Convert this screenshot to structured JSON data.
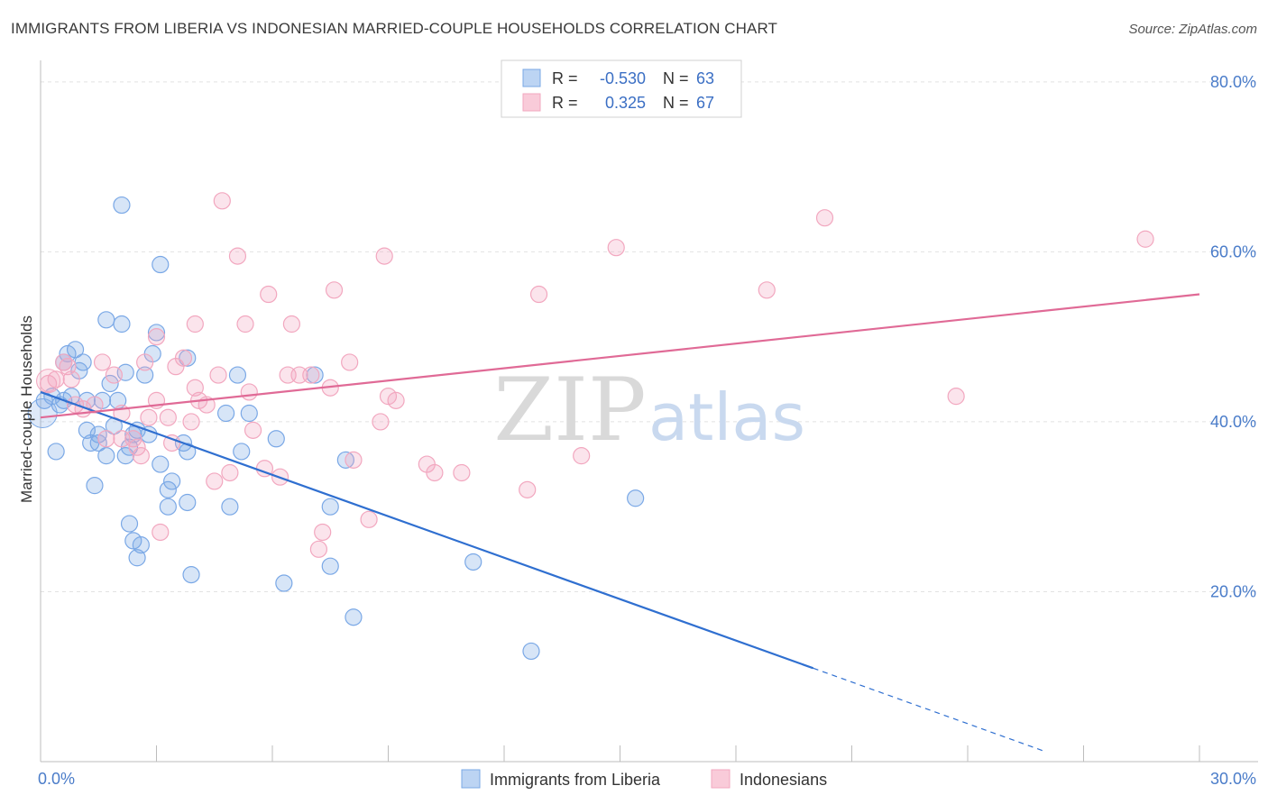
{
  "title": "IMMIGRANTS FROM LIBERIA VS INDONESIAN MARRIED-COUPLE HOUSEHOLDS CORRELATION CHART",
  "source": "Source: ZipAtlas.com",
  "watermark": {
    "zip": "ZIP",
    "atlas": "atlas"
  },
  "chart_data": {
    "type": "scatter",
    "ylabel": "Married-couple Households",
    "xlim": [
      0,
      30
    ],
    "ylim": [
      0,
      82
    ],
    "x_tick_labels": [
      {
        "value": 0,
        "label": "0.0%"
      },
      {
        "value": 30,
        "label": "30.0%"
      }
    ],
    "y_tick_labels": [
      {
        "value": 20,
        "label": "20.0%"
      },
      {
        "value": 40,
        "label": "40.0%"
      },
      {
        "value": 60,
        "label": "60.0%"
      },
      {
        "value": 80,
        "label": "80.0%"
      }
    ],
    "grid": true,
    "legend_placement": "top-center",
    "series": [
      {
        "name": "Immigrants from Liberia",
        "color": "#7aa8e6",
        "line_color": "#2f6fd0",
        "R": "-0.530",
        "N": "63",
        "trend": {
          "x0": 0,
          "y0": 43.5,
          "x1": 20,
          "y1": 11,
          "dash_to_x": 26,
          "dash_to_y": 1.2
        },
        "points": [
          [
            0.1,
            42.5
          ],
          [
            0.3,
            43
          ],
          [
            0.5,
            42
          ],
          [
            0.6,
            47
          ],
          [
            0.7,
            48
          ],
          [
            0.8,
            43
          ],
          [
            0.9,
            48.5
          ],
          [
            1,
            46
          ],
          [
            1.2,
            42.5
          ],
          [
            0.4,
            36.5
          ],
          [
            1.2,
            39
          ],
          [
            1.3,
            37.5
          ],
          [
            1.4,
            32.5
          ],
          [
            1.5,
            37.5
          ],
          [
            1.6,
            42.5
          ],
          [
            1.7,
            52
          ],
          [
            1.7,
            36
          ],
          [
            1.8,
            44.5
          ],
          [
            1.9,
            39.5
          ],
          [
            2,
            42.5
          ],
          [
            2.1,
            51.5
          ],
          [
            2.2,
            36
          ],
          [
            2.3,
            37
          ],
          [
            2.3,
            28
          ],
          [
            2.4,
            26
          ],
          [
            2.5,
            24
          ],
          [
            2.6,
            25.5
          ],
          [
            2.7,
            45.5
          ],
          [
            2.5,
            39
          ],
          [
            2.1,
            65.5
          ],
          [
            2.8,
            38.5
          ],
          [
            2.9,
            48
          ],
          [
            3,
            50.5
          ],
          [
            3.1,
            58.5
          ],
          [
            3.1,
            35
          ],
          [
            3.3,
            30
          ],
          [
            3.4,
            33
          ],
          [
            3.3,
            32
          ],
          [
            3.8,
            30.5
          ],
          [
            3.9,
            22
          ],
          [
            3.7,
            37.5
          ],
          [
            3.8,
            36.5
          ],
          [
            3.8,
            47.5
          ],
          [
            4.8,
            41
          ],
          [
            4.9,
            30
          ],
          [
            5.1,
            45.5
          ],
          [
            5.2,
            36.5
          ],
          [
            5.4,
            41
          ],
          [
            6.1,
            38
          ],
          [
            6.3,
            21
          ],
          [
            7.1,
            45.5
          ],
          [
            7.5,
            30
          ],
          [
            7.5,
            23
          ],
          [
            7.9,
            35.5
          ],
          [
            8.1,
            17
          ],
          [
            11.2,
            23.5
          ],
          [
            12.7,
            13
          ],
          [
            15.4,
            31
          ],
          [
            1.1,
            47
          ],
          [
            2.2,
            45.8
          ],
          [
            0.6,
            42.5
          ],
          [
            1.5,
            38.5
          ],
          [
            2.4,
            38.5
          ]
        ]
      },
      {
        "name": "Indonesians",
        "color": "#f2a7bf",
        "line_color": "#e06a96",
        "R": "0.325",
        "N": "67",
        "trend": {
          "x0": 0,
          "y0": 40.5,
          "x1": 30,
          "y1": 55
        },
        "points": [
          [
            0.2,
            44.5
          ],
          [
            0.4,
            45
          ],
          [
            0.6,
            47
          ],
          [
            0.7,
            46.5
          ],
          [
            0.8,
            45
          ],
          [
            0.9,
            42
          ],
          [
            1.1,
            41.5
          ],
          [
            1.4,
            42
          ],
          [
            1.6,
            47
          ],
          [
            1.7,
            38
          ],
          [
            1.9,
            45.5
          ],
          [
            2.1,
            38
          ],
          [
            2.1,
            41
          ],
          [
            2.4,
            38
          ],
          [
            2.5,
            37
          ],
          [
            2.6,
            36
          ],
          [
            2.7,
            47
          ],
          [
            2.8,
            40.5
          ],
          [
            3,
            42.5
          ],
          [
            3,
            50
          ],
          [
            3.1,
            27
          ],
          [
            3.3,
            40.5
          ],
          [
            3.4,
            37.5
          ],
          [
            3.5,
            46.5
          ],
          [
            3.7,
            47.5
          ],
          [
            3.9,
            40
          ],
          [
            4,
            44
          ],
          [
            4.1,
            42.5
          ],
          [
            4,
            51.5
          ],
          [
            4.3,
            42
          ],
          [
            4.5,
            33
          ],
          [
            4.6,
            45.5
          ],
          [
            4.7,
            66
          ],
          [
            4.9,
            34
          ],
          [
            5.1,
            59.5
          ],
          [
            5.3,
            51.5
          ],
          [
            5.4,
            43.5
          ],
          [
            5.5,
            39
          ],
          [
            5.8,
            34.5
          ],
          [
            5.9,
            55
          ],
          [
            6.2,
            33.5
          ],
          [
            6.4,
            45.5
          ],
          [
            6.5,
            51.5
          ],
          [
            6.7,
            45.5
          ],
          [
            7,
            45.5
          ],
          [
            7.2,
            25
          ],
          [
            7.3,
            27
          ],
          [
            7.5,
            44
          ],
          [
            7.6,
            55.5
          ],
          [
            8,
            47
          ],
          [
            8.1,
            35.5
          ],
          [
            8.5,
            28.5
          ],
          [
            8.8,
            40
          ],
          [
            8.9,
            59.5
          ],
          [
            9,
            43
          ],
          [
            9.2,
            42.5
          ],
          [
            10,
            35
          ],
          [
            10.2,
            34
          ],
          [
            10.9,
            34
          ],
          [
            12.6,
            32
          ],
          [
            12.9,
            55
          ],
          [
            14,
            36
          ],
          [
            14.9,
            60.5
          ],
          [
            18.8,
            55.5
          ],
          [
            20.3,
            64
          ],
          [
            23.7,
            43
          ],
          [
            28.6,
            61.5
          ]
        ]
      }
    ]
  },
  "legend": {
    "r_label": "R =",
    "n_label": "N ="
  }
}
